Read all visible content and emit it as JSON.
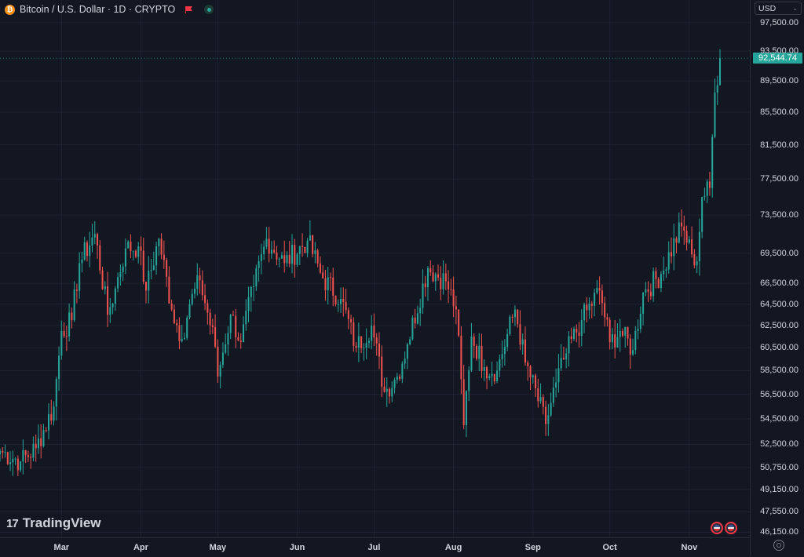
{
  "header": {
    "coin_symbol": "₿",
    "title": "Bitcoin / U.S. Dollar · 1D · CRYPTO"
  },
  "currency_selector": {
    "value": "USD"
  },
  "last_price_label": "92,544.74",
  "branding": {
    "logo_text": "TradingView",
    "logo_mark": "17"
  },
  "colors": {
    "up": "#26a69a",
    "down": "#ef5350",
    "background": "#131722",
    "grid": "#1e2230"
  },
  "chart_data": {
    "type": "candlestick",
    "title": "Bitcoin / U.S. Dollar · 1D · CRYPTO",
    "x_tick_labels": [
      "Mar",
      "Apr",
      "May",
      "Jun",
      "Jul",
      "Aug",
      "Sep",
      "Oct",
      "Nov"
    ],
    "y_tick_labels": [
      "97,500.00",
      "93,500.00",
      "89,500.00",
      "85,500.00",
      "81,500.00",
      "77,500.00",
      "73,500.00",
      "69,500.00",
      "66,500.00",
      "64,500.00",
      "62,500.00",
      "60,500.00",
      "58,500.00",
      "56,500.00",
      "54,500.00",
      "52,500.00",
      "50,750.00",
      "49,150.00",
      "47,550.00",
      "46,150.00"
    ],
    "y_tick_values": [
      97500,
      93500,
      89500,
      85500,
      81500,
      77500,
      73500,
      69500,
      66500,
      64500,
      62500,
      60500,
      58500,
      56500,
      54500,
      52500,
      50750,
      49150,
      47550,
      46150
    ],
    "ylim": [
      45800,
      100800
    ],
    "x_range": [
      "2024-02-06",
      "2024-11-13"
    ],
    "last_price": 92544.74,
    "grid": true,
    "scale": "log",
    "keypoints": [
      [
        "2024-02-06",
        52000
      ],
      [
        "2024-02-14",
        51200
      ],
      [
        "2024-02-20",
        52200
      ],
      [
        "2024-02-27",
        55500
      ],
      [
        "2024-03-01",
        62000
      ],
      [
        "2024-03-05",
        63000
      ],
      [
        "2024-03-08",
        68500
      ],
      [
        "2024-03-14",
        71500
      ],
      [
        "2024-03-19",
        63500
      ],
      [
        "2024-03-22",
        66000
      ],
      [
        "2024-03-26",
        70000
      ],
      [
        "2024-03-31",
        70200
      ],
      [
        "2024-04-03",
        65800
      ],
      [
        "2024-04-08",
        71000
      ],
      [
        "2024-04-13",
        64000
      ],
      [
        "2024-04-17",
        61300
      ],
      [
        "2024-04-20",
        64500
      ],
      [
        "2024-04-24",
        66800
      ],
      [
        "2024-04-30",
        60600
      ],
      [
        "2024-05-01",
        58000
      ],
      [
        "2024-05-06",
        63500
      ],
      [
        "2024-05-10",
        61000
      ],
      [
        "2024-05-15",
        66200
      ],
      [
        "2024-05-20",
        71000
      ],
      [
        "2024-05-27",
        68500
      ],
      [
        "2024-06-05",
        70800
      ],
      [
        "2024-06-11",
        67000
      ],
      [
        "2024-06-18",
        65000
      ],
      [
        "2024-06-24",
        60500
      ],
      [
        "2024-06-30",
        62500
      ],
      [
        "2024-07-05",
        56700
      ],
      [
        "2024-07-10",
        58000
      ],
      [
        "2024-07-14",
        60800
      ],
      [
        "2024-07-22",
        68000
      ],
      [
        "2024-07-29",
        66700
      ],
      [
        "2024-08-02",
        64000
      ],
      [
        "2024-08-05",
        54000
      ],
      [
        "2024-08-08",
        61500
      ],
      [
        "2024-08-13",
        58800
      ],
      [
        "2024-08-18",
        58500
      ],
      [
        "2024-08-25",
        64000
      ],
      [
        "2024-08-29",
        59200
      ],
      [
        "2024-09-06",
        54100
      ],
      [
        "2024-09-10",
        57500
      ],
      [
        "2024-09-14",
        60000
      ],
      [
        "2024-09-20",
        63000
      ],
      [
        "2024-09-27",
        65800
      ],
      [
        "2024-10-01",
        61000
      ],
      [
        "2024-10-05",
        62000
      ],
      [
        "2024-10-10",
        60300
      ],
      [
        "2024-10-14",
        65600
      ],
      [
        "2024-10-21",
        67400
      ],
      [
        "2024-10-29",
        72300
      ],
      [
        "2024-11-02",
        69400
      ],
      [
        "2024-11-04",
        68700
      ],
      [
        "2024-11-06",
        75500
      ],
      [
        "2024-11-09",
        76500
      ],
      [
        "2024-11-11",
        88000
      ],
      [
        "2024-11-13",
        92544.74
      ]
    ]
  }
}
